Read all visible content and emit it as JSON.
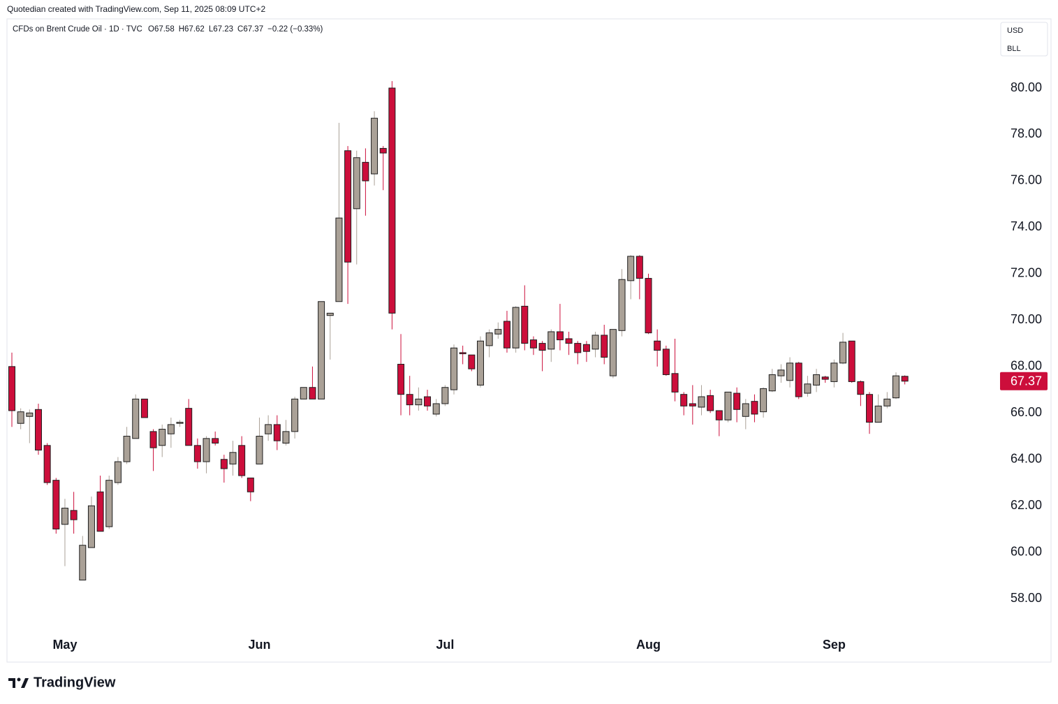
{
  "chart_data": {
    "type": "candlestick",
    "attribution": "Quotedian created with TradingView.com, Sep 11, 2025 08:09 UTC+2",
    "title": "CFDs on Brent Crude Oil · 1D · TVC",
    "ohlc_legend": [
      "O67.58",
      "H67.62",
      "L67.23",
      "C67.37",
      "−0.22 (−0.33%)"
    ],
    "currency": "USD",
    "unit": "BLL",
    "brand": "TradingView",
    "categories": [
      null,
      null,
      null,
      null,
      null,
      null,
      "May",
      null,
      null,
      null,
      null,
      null,
      null,
      null,
      null,
      null,
      null,
      null,
      null,
      null,
      null,
      null,
      null,
      null,
      null,
      null,
      null,
      null,
      "Jun",
      null,
      null,
      null,
      null,
      null,
      null,
      null,
      null,
      null,
      null,
      null,
      null,
      null,
      null,
      null,
      null,
      null,
      null,
      null,
      null,
      "Jul",
      null,
      null,
      null,
      null,
      null,
      null,
      null,
      null,
      null,
      null,
      null,
      null,
      null,
      null,
      null,
      null,
      null,
      null,
      null,
      null,
      null,
      null,
      "Aug",
      null,
      null,
      null,
      null,
      null,
      null,
      null,
      null,
      null,
      null,
      null,
      null,
      null,
      null,
      null,
      null,
      null,
      null,
      null,
      null,
      "Sep",
      null,
      null,
      null,
      null,
      null,
      null,
      null,
      null
    ],
    "open": [
      68.0,
      65.55,
      65.85,
      66.15,
      64.6,
      63.1,
      61.2,
      61.8,
      58.8,
      60.2,
      62.6,
      61.1,
      63.0,
      63.9,
      64.9,
      66.6,
      65.2,
      64.6,
      65.1,
      65.55,
      66.2,
      64.6,
      63.9,
      64.9,
      64.0,
      63.8,
      64.6,
      63.2,
      63.8,
      65.1,
      65.5,
      64.7,
      65.2,
      66.6,
      67.1,
      66.6,
      70.2,
      70.8,
      77.3,
      74.8,
      76.8,
      76.3,
      77.4,
      80.0,
      68.1,
      66.8,
      66.35,
      66.7,
      65.95,
      66.4,
      67.0,
      68.6,
      68.5,
      67.2,
      68.9,
      69.4,
      69.95,
      68.8,
      70.6,
      69.15,
      69.0,
      68.75,
      69.5,
      69.2,
      69.0,
      68.95,
      68.75,
      69.35,
      67.6,
      69.55,
      71.7,
      72.75,
      71.8,
      69.1,
      68.75,
      67.7,
      66.8,
      66.4,
      66.25,
      66.75,
      66.1,
      65.7,
      66.85,
      65.85,
      66.5,
      66.05,
      66.95,
      67.6,
      67.4,
      68.15,
      66.85,
      67.2,
      67.55,
      67.35,
      68.15,
      69.1,
      67.35,
      66.8,
      65.6,
      66.3,
      66.65,
      67.58
    ],
    "high": [
      68.6,
      66.2,
      66.15,
      66.4,
      64.7,
      63.2,
      62.3,
      62.6,
      60.7,
      62.4,
      63.3,
      63.3,
      64.1,
      65.4,
      66.8,
      66.6,
      65.3,
      65.5,
      65.8,
      65.7,
      66.6,
      64.9,
      65.0,
      65.2,
      64.2,
      64.8,
      65.0,
      63.2,
      65.8,
      65.9,
      65.9,
      65.7,
      66.7,
      67.1,
      68.0,
      70.8,
      70.3,
      78.5,
      77.5,
      77.3,
      77.4,
      79.0,
      77.5,
      80.3,
      69.4,
      67.6,
      67.1,
      67.0,
      66.6,
      67.2,
      68.95,
      68.9,
      68.5,
      69.3,
      69.6,
      69.9,
      70.4,
      70.6,
      71.5,
      69.3,
      69.1,
      69.6,
      70.7,
      69.5,
      69.1,
      69.1,
      69.5,
      69.8,
      69.6,
      72.2,
      72.8,
      72.8,
      72.0,
      69.6,
      68.9,
      69.2,
      66.9,
      67.2,
      67.2,
      67.0,
      66.1,
      66.9,
      67.1,
      66.6,
      66.8,
      67.1,
      67.9,
      68.1,
      68.4,
      68.2,
      67.6,
      67.9,
      67.6,
      68.3,
      69.45,
      69.1,
      67.4,
      66.9,
      66.8,
      66.9,
      67.75,
      67.62
    ],
    "low": [
      65.4,
      65.3,
      64.7,
      64.2,
      62.9,
      60.8,
      59.4,
      60.8,
      58.8,
      60.2,
      60.9,
      61.0,
      62.9,
      63.8,
      64.9,
      65.8,
      63.5,
      64.1,
      64.5,
      65.4,
      64.6,
      63.6,
      63.4,
      64.6,
      63.0,
      63.3,
      63.2,
      62.2,
      63.8,
      64.8,
      64.4,
      64.6,
      64.9,
      66.6,
      66.6,
      66.6,
      68.3,
      70.8,
      70.7,
      72.4,
      74.5,
      75.8,
      75.6,
      69.6,
      65.9,
      65.9,
      66.1,
      66.1,
      65.85,
      66.3,
      66.8,
      68.1,
      67.8,
      67.1,
      68.4,
      69.2,
      68.6,
      68.6,
      68.7,
      68.5,
      67.8,
      68.2,
      68.7,
      68.5,
      68.1,
      68.2,
      68.4,
      68.1,
      67.5,
      69.3,
      70.9,
      70.9,
      69.4,
      68.0,
      67.6,
      66.5,
      65.9,
      65.5,
      65.9,
      66.0,
      65.0,
      65.6,
      65.6,
      65.3,
      65.6,
      65.8,
      66.9,
      67.3,
      67.1,
      66.6,
      66.7,
      66.9,
      67.3,
      67.1,
      68.1,
      67.3,
      66.3,
      65.1,
      65.6,
      66.2,
      66.6,
      67.23
    ],
    "close": [
      66.1,
      66.05,
      66.0,
      64.4,
      63.0,
      61.0,
      61.9,
      61.4,
      60.3,
      62.0,
      60.9,
      63.1,
      63.9,
      65.0,
      66.6,
      65.8,
      64.5,
      65.3,
      65.5,
      65.6,
      64.6,
      63.9,
      64.9,
      64.7,
      63.6,
      64.3,
      63.3,
      62.6,
      65.0,
      65.5,
      64.8,
      65.2,
      66.6,
      67.1,
      66.6,
      70.8,
      70.3,
      74.4,
      72.5,
      77.0,
      76.0,
      78.7,
      77.2,
      70.3,
      66.8,
      66.35,
      66.6,
      66.3,
      66.4,
      67.1,
      68.8,
      68.55,
      67.9,
      69.1,
      69.45,
      69.6,
      68.8,
      70.55,
      69.0,
      68.8,
      68.7,
      69.5,
      69.15,
      69.0,
      68.6,
      68.65,
      69.35,
      68.4,
      69.6,
      71.75,
      72.75,
      71.8,
      69.45,
      68.7,
      67.65,
      66.9,
      66.3,
      66.3,
      66.7,
      66.1,
      65.7,
      66.9,
      66.15,
      66.4,
      65.95,
      67.05,
      67.65,
      67.85,
      68.15,
      66.7,
      67.25,
      67.65,
      67.45,
      68.15,
      69.05,
      67.35,
      66.8,
      65.6,
      66.3,
      66.6,
      67.6,
      67.37
    ],
    "up_color": "#aaa197",
    "down_color": "#cc0e3b",
    "last_price": 67.37,
    "ylim": [
      56.56,
      82.95
    ],
    "yticks": [
      {
        "value": 58,
        "label": "58.00"
      },
      {
        "value": 60,
        "label": "60.00"
      },
      {
        "value": 62,
        "label": "62.00"
      },
      {
        "value": 64,
        "label": "64.00"
      },
      {
        "value": 66,
        "label": "66.00"
      },
      {
        "value": 68,
        "label": "68.00"
      },
      {
        "value": 70,
        "label": "70.00"
      },
      {
        "value": 72,
        "label": "72.00"
      },
      {
        "value": 74,
        "label": "74.00"
      },
      {
        "value": 76,
        "label": "76.00"
      },
      {
        "value": 78,
        "label": "78.00"
      },
      {
        "value": 80,
        "label": "80.00"
      }
    ]
  }
}
